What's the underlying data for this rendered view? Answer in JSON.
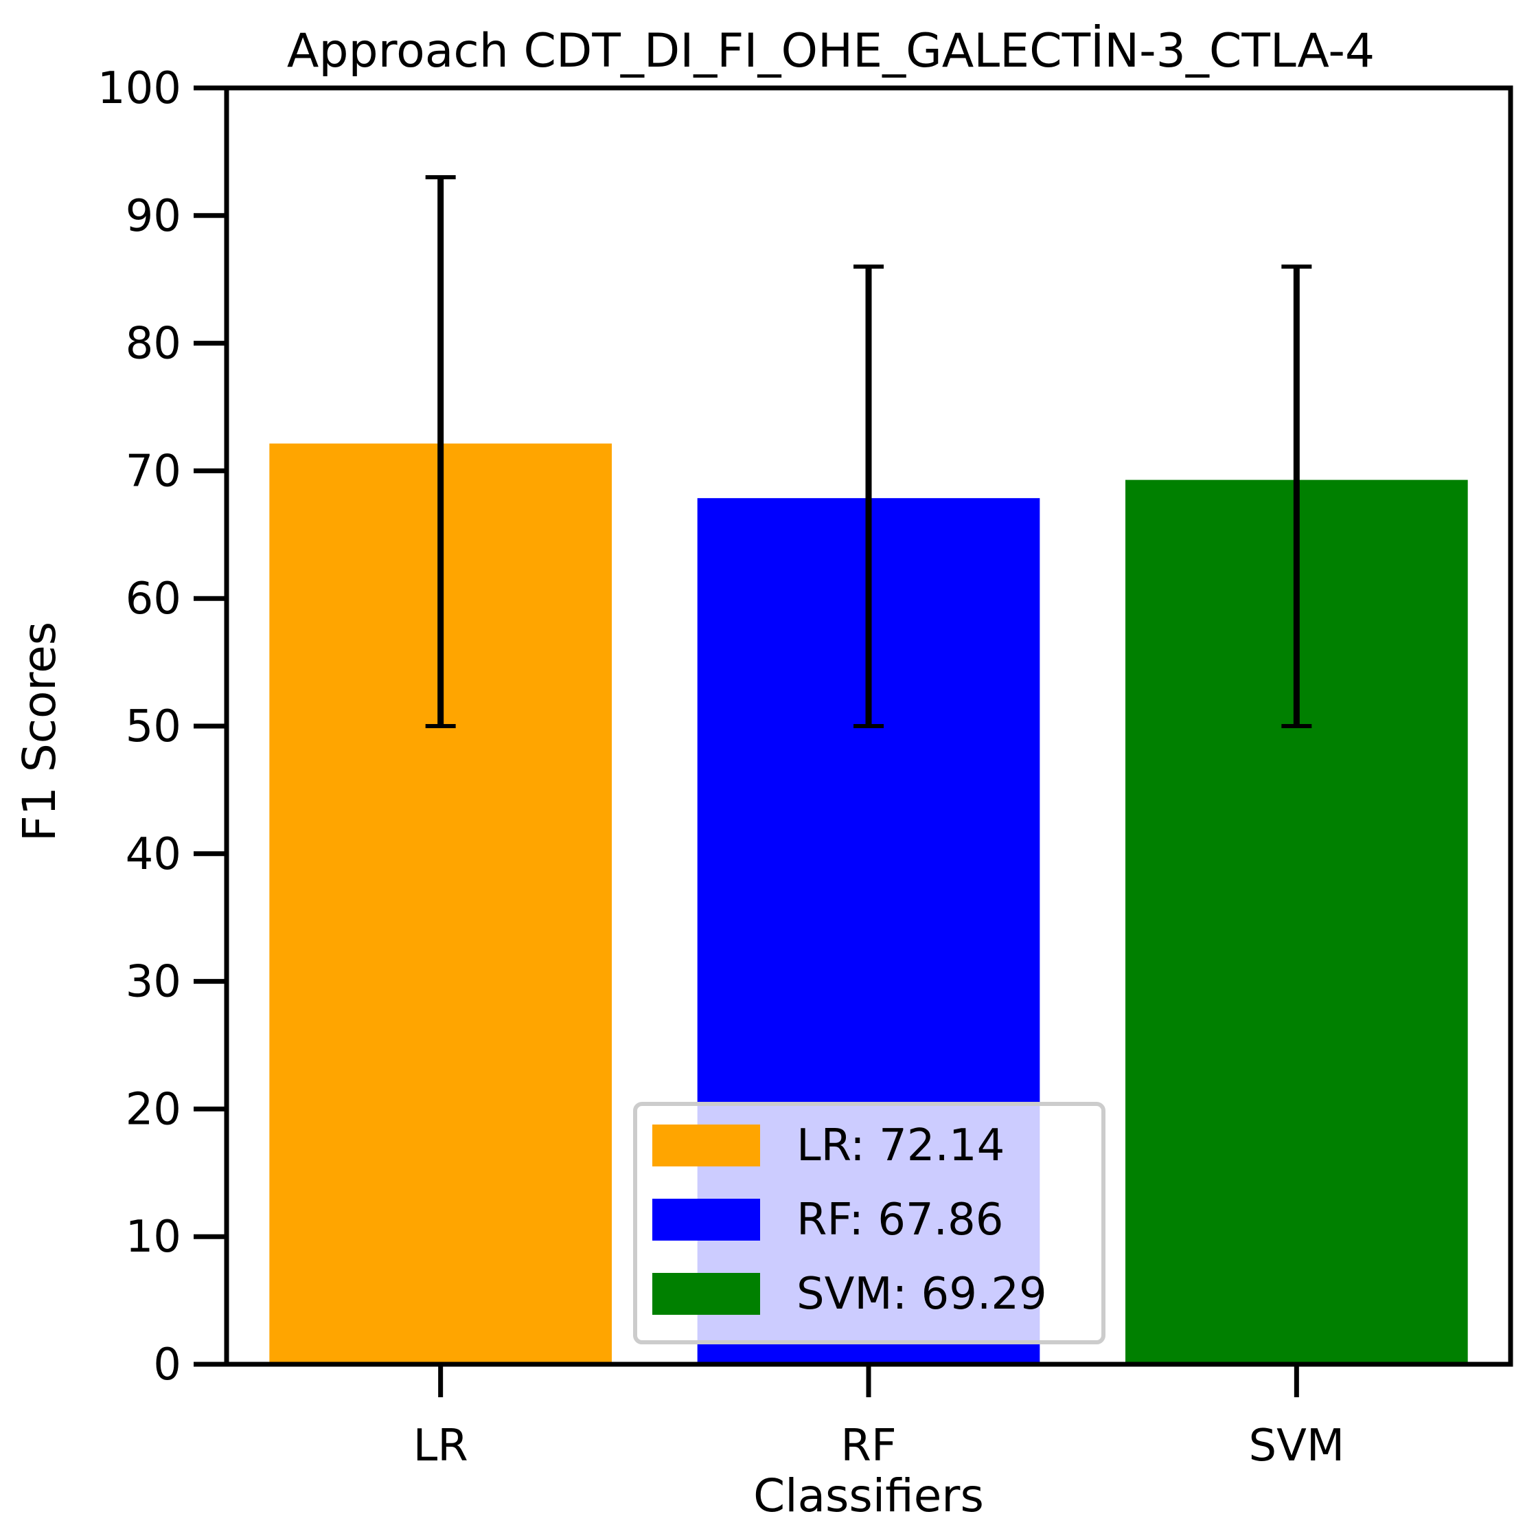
{
  "chart_data": {
    "type": "bar",
    "title": "Approach CDT_DI_FI_OHE_GALECTİN-3_CTLA-4",
    "xlabel": "Classifiers",
    "ylabel": "F1 Scores",
    "ylim": [
      0,
      100
    ],
    "yticks": [
      0,
      10,
      20,
      30,
      40,
      50,
      60,
      70,
      80,
      90,
      100
    ],
    "categories": [
      "LR",
      "RF",
      "SVM"
    ],
    "values": [
      72.14,
      67.86,
      69.29
    ],
    "error_low": [
      50,
      50,
      50
    ],
    "error_high": [
      93,
      86,
      86
    ],
    "colors": [
      "#ffa500",
      "#0000ff",
      "#008000"
    ],
    "grid": false,
    "legend": {
      "placement": "lower-center",
      "entries": [
        "LR: 72.14",
        "RF: 67.86",
        "SVM: 69.29"
      ]
    }
  }
}
